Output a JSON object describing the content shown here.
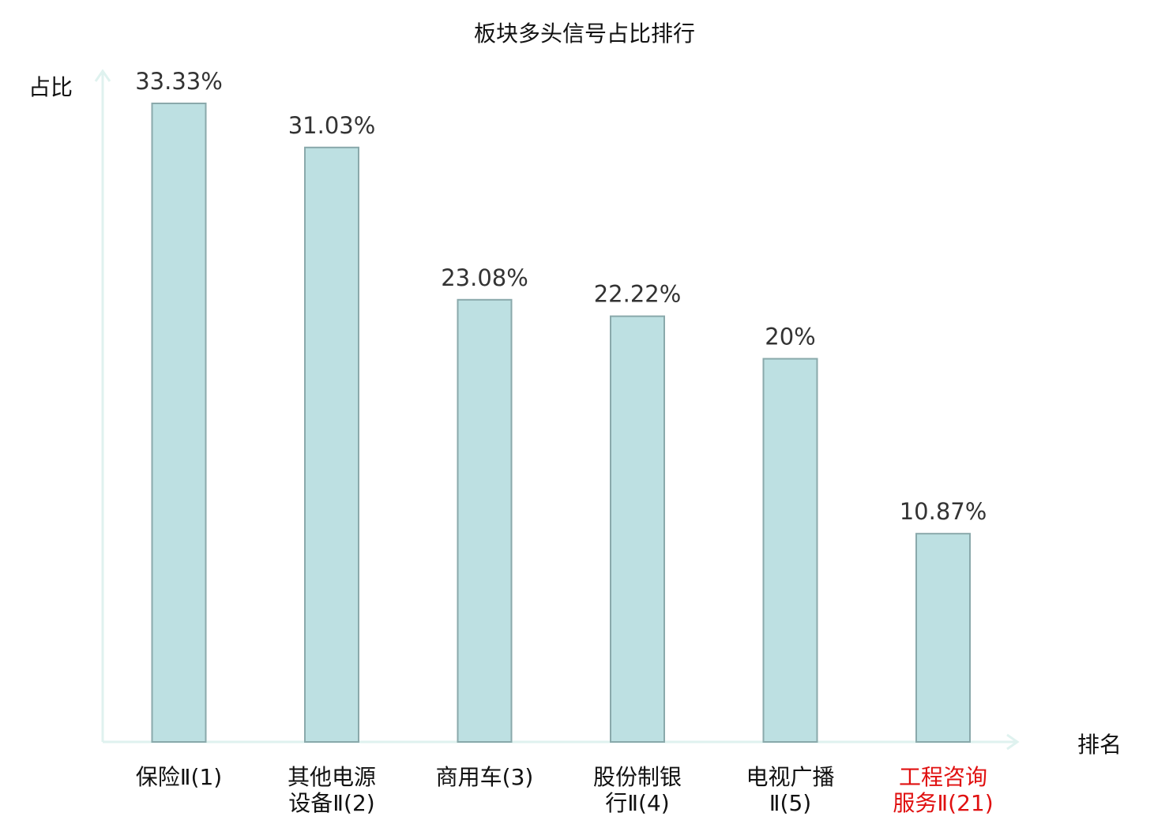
{
  "chart_data": {
    "type": "bar",
    "title": "板块多头信号占比排行",
    "ylabel": "占比",
    "xlabel": "排名",
    "ylim": [
      0,
      35
    ],
    "grid": false,
    "categories": [
      [
        "保险Ⅱ(1)"
      ],
      [
        "其他电源",
        "设备Ⅱ(2)"
      ],
      [
        "商用车(3)"
      ],
      [
        "股份制银",
        "行Ⅱ(4)"
      ],
      [
        "电视广播",
        "Ⅱ(5)"
      ],
      [
        "工程咨询",
        "服务Ⅱ(21)"
      ]
    ],
    "values": [
      33.33,
      31.03,
      23.08,
      22.22,
      20,
      10.87
    ],
    "value_labels": [
      "33.33%",
      "31.03%",
      "23.08%",
      "22.22%",
      "20%",
      "10.87%"
    ],
    "highlight_index": 5,
    "colors": {
      "bar_fill": "#bde0e2",
      "bar_stroke": "#8aa9ab",
      "axis": "#dff2ef",
      "text": "#333333",
      "highlight_text": "#e01010",
      "title": "#111111"
    }
  }
}
